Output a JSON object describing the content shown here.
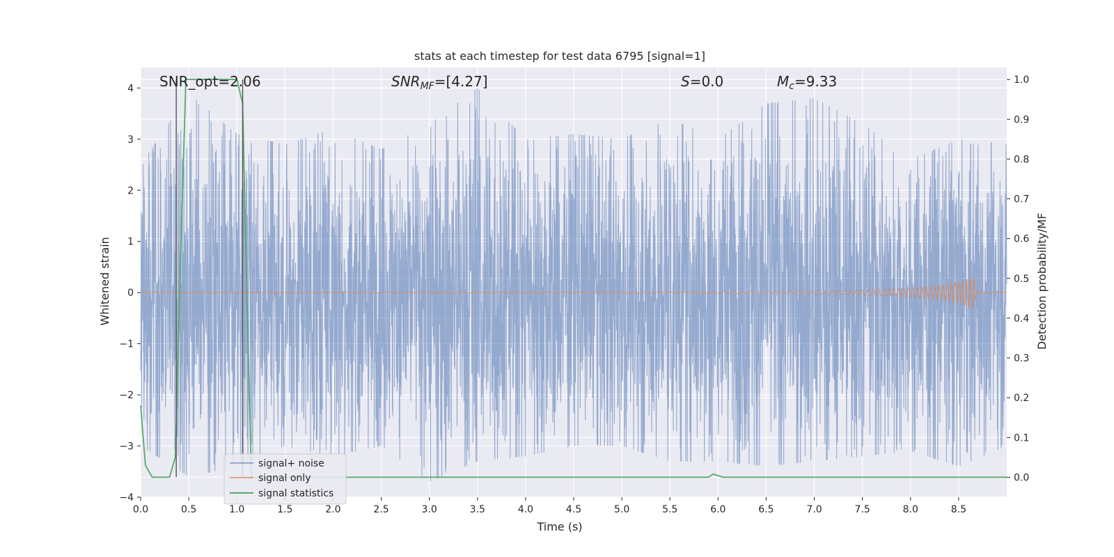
{
  "chart_data": {
    "type": "line",
    "title": "stats at each timestep for test data 6795 [signal=1]",
    "xlabel": "Time (s)",
    "ylabel": "Whitened strain",
    "y2label": "Detection probability/MF",
    "xlim": [
      0,
      9.0
    ],
    "ylim": [
      -4.0,
      4.4
    ],
    "y2lim": [
      -0.05,
      1.03
    ],
    "xticks": [
      "0.0",
      "0.5",
      "1.0",
      "1.5",
      "2.0",
      "2.5",
      "3.0",
      "3.5",
      "4.0",
      "4.5",
      "5.0",
      "5.5",
      "6.0",
      "6.5",
      "7.0",
      "7.5",
      "8.0",
      "8.5"
    ],
    "yticks": [
      "−4",
      "−3",
      "−2",
      "−1",
      "0",
      "1",
      "2",
      "3",
      "4"
    ],
    "y2ticks": [
      "0.0",
      "0.1",
      "0.2",
      "0.3",
      "0.4",
      "0.5",
      "0.6",
      "0.7",
      "0.8",
      "0.9",
      "1.0"
    ],
    "grid": true,
    "legend_position": "lower-left",
    "annotations": {
      "snr_opt": "SNR_opt=2.06",
      "snr_mf_sym": "SNR",
      "snr_mf_sub": "MF",
      "snr_mf_val": "=[4.27]",
      "s_sym": "S",
      "s_val": "=0.0",
      "mc_sym": "M",
      "mc_sub": "c",
      "mc_val": "=9.33"
    },
    "series": [
      {
        "name": "signal+ noise",
        "color": "#4c72b0",
        "description": "dense whitened noise spanning the full time range",
        "envelope_x": [
          0,
          0.5,
          1,
          1.5,
          2,
          2.5,
          3,
          3.5,
          4,
          4.5,
          5,
          5.5,
          6,
          6.5,
          7,
          7.5,
          8,
          8.5,
          9
        ],
        "envelope_upper": [
          2.5,
          3.9,
          3.1,
          2.9,
          3.2,
          2.8,
          3.3,
          4.0,
          3.0,
          3.1,
          3.0,
          3.4,
          3.0,
          3.7,
          3.8,
          3.3,
          2.6,
          3.0,
          2.9
        ],
        "envelope_lower": [
          -3.0,
          -3.6,
          -3.4,
          -3.0,
          -3.2,
          -3.0,
          -3.7,
          -3.3,
          -3.2,
          -3.0,
          -3.0,
          -3.3,
          -3.3,
          -3.4,
          -3.3,
          -3.2,
          -3.1,
          -3.4,
          -3.0
        ]
      },
      {
        "name": "signal only",
        "color": "#dd8452",
        "description": "chirp waveform with amplitude growing until merger",
        "x": [
          0,
          5.5,
          6.5,
          7.0,
          7.5,
          8.0,
          8.3,
          8.5,
          8.6,
          8.65,
          8.7,
          9.0
        ],
        "amplitude": [
          0.0,
          0.01,
          0.02,
          0.03,
          0.05,
          0.09,
          0.14,
          0.2,
          0.27,
          0.33,
          0.0,
          0.0
        ]
      },
      {
        "name": "signal statistics",
        "color": "#55a868",
        "axis": "right",
        "x": [
          0,
          0.05,
          0.12,
          0.3,
          0.36,
          0.42,
          0.47,
          0.95,
          1.0,
          1.06,
          1.1,
          1.15,
          5.9,
          5.95,
          6.05,
          9.0
        ],
        "y": [
          0.18,
          0.03,
          0.0,
          0.0,
          0.05,
          0.6,
          1.0,
          1.0,
          1.0,
          0.94,
          0.5,
          0.0,
          0.0,
          0.008,
          0.0,
          0.0
        ]
      }
    ],
    "vlines": [
      0.37,
      1.06
    ]
  }
}
